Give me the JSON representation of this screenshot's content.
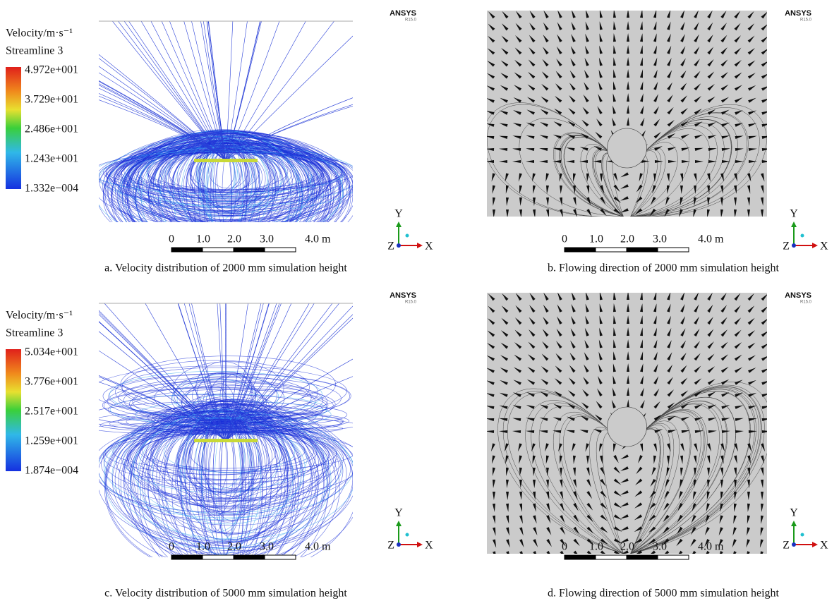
{
  "panels": [
    {
      "legend_title": "Velocity/m·s⁻¹",
      "legend_subtitle": "Streamline 3",
      "legend_labels": [
        "4.972e+001",
        "3.729e+001",
        "2.486e+001",
        "1.243e+001",
        "1.332e−004"
      ],
      "logo": "ANSYS",
      "version": "R15.0",
      "scale_labels": [
        "0",
        "1.0",
        "2.0",
        "3.0",
        "4.0 m"
      ],
      "axes": [
        "Y",
        "Z",
        "X"
      ],
      "caption": "a. Velocity distribution of 2000 mm simulation height"
    },
    {
      "logo": "ANSYS",
      "version": "R15.0",
      "scale_labels": [
        "0",
        "1.0",
        "2.0",
        "3.0",
        "4.0 m"
      ],
      "axes": [
        "Y",
        "Z",
        "X"
      ],
      "caption": "b. Flowing direction of 2000 mm simulation height"
    },
    {
      "legend_title": "Velocity/m·s⁻¹",
      "legend_subtitle": "Streamline 3",
      "legend_labels": [
        "5.034e+001",
        "3.776e+001",
        "2.517e+001",
        "1.259e+001",
        "1.874e−004"
      ],
      "logo": "ANSYS",
      "version": "R15.0",
      "scale_labels": [
        "0",
        "1.0",
        "2.0",
        "3.0",
        "4.0 m"
      ],
      "axes": [
        "Y",
        "Z",
        "X"
      ],
      "caption": "c. Velocity distribution of 5000 mm simulation height"
    },
    {
      "logo": "ANSYS",
      "version": "R15.0",
      "scale_labels": [
        "0",
        "1.0",
        "2.0",
        "3.0",
        "4.0 m"
      ],
      "axes": [
        "Y",
        "Z",
        "X"
      ],
      "caption": "d. Flowing direction of 5000 mm simulation height"
    }
  ]
}
